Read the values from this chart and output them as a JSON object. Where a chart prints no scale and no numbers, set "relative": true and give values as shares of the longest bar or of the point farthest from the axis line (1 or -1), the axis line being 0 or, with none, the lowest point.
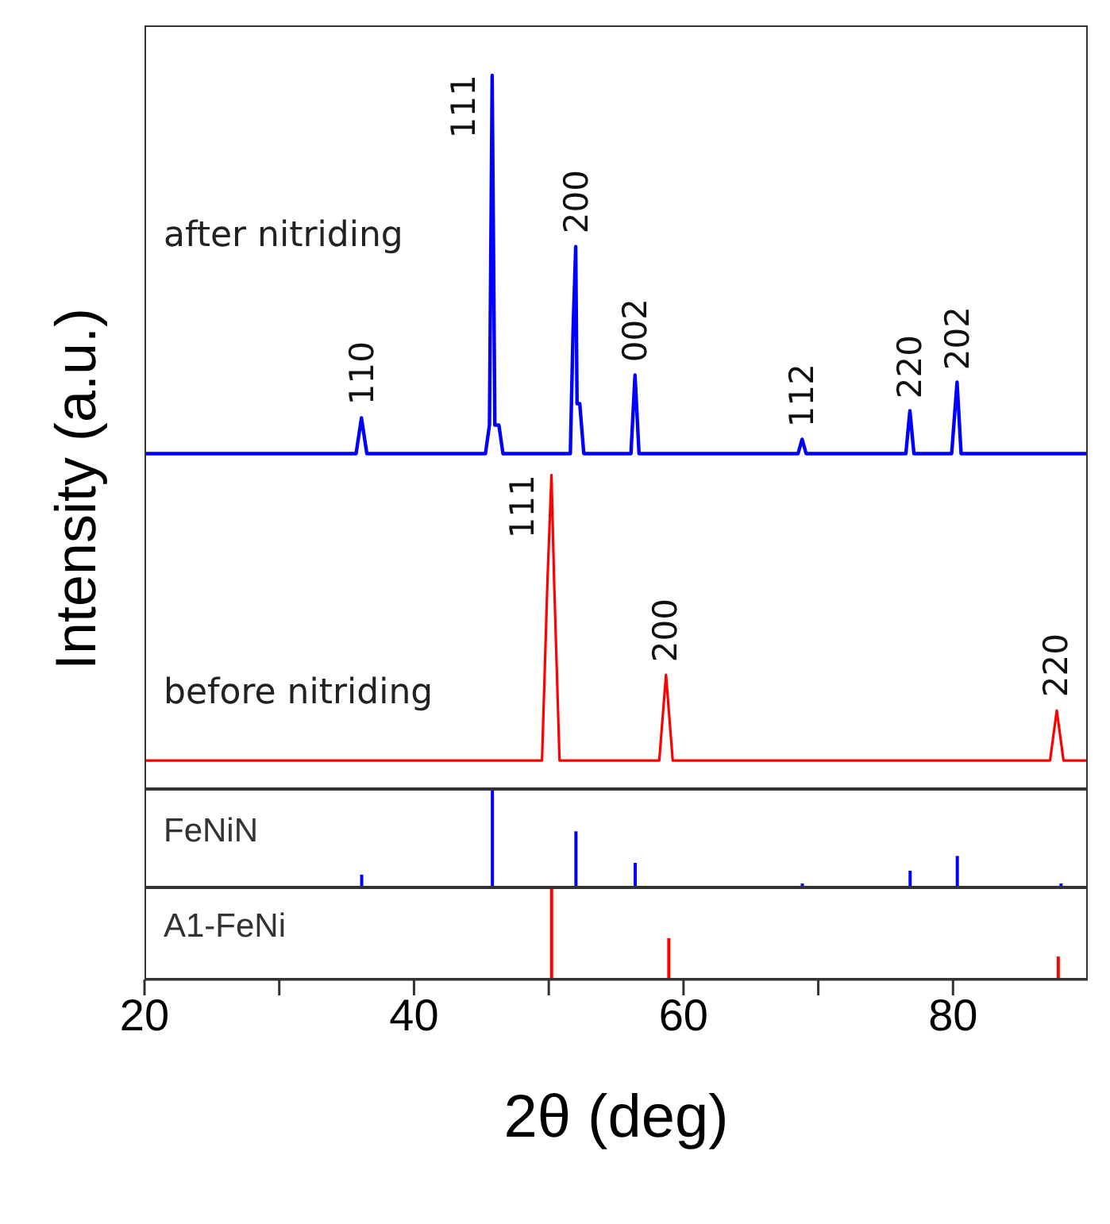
{
  "chart_data": [
    {
      "type": "line",
      "relative": true,
      "ylabel": "Intensity (a.u.)",
      "xlim": [
        20,
        90
      ],
      "tick_labels": false,
      "series": [
        {
          "name": "after nitriding",
          "color": "#0000ff",
          "x": [
            20,
            35.7,
            36.1,
            36.5,
            45.3,
            45.6,
            45.8,
            46.0,
            46.3,
            46.6,
            51.6,
            51.8,
            52.0,
            52.1,
            52.3,
            52.6,
            56.1,
            56.4,
            56.7,
            68.5,
            68.8,
            69.1,
            76.5,
            76.8,
            77.1,
            79.9,
            80.1,
            80.3,
            80.6,
            90
          ],
          "values": [
            0.47,
            0.47,
            0.52,
            0.47,
            0.47,
            0.51,
            1.0,
            0.51,
            0.51,
            0.47,
            0.47,
            0.64,
            0.76,
            0.54,
            0.54,
            0.47,
            0.47,
            0.58,
            0.47,
            0.47,
            0.49,
            0.47,
            0.47,
            0.53,
            0.47,
            0.47,
            0.52,
            0.57,
            0.47,
            0.47
          ]
        },
        {
          "name": "before nitriding",
          "color": "#ff0000",
          "x": [
            20,
            49.5,
            49.9,
            50.2,
            50.4,
            50.8,
            58.2,
            58.7,
            59.2,
            87.2,
            87.7,
            88.2,
            90
          ],
          "values": [
            0.04,
            0.04,
            0.29,
            0.44,
            0.29,
            0.04,
            0.04,
            0.16,
            0.04,
            0.04,
            0.11,
            0.04,
            0.04
          ]
        }
      ],
      "annotations": [
        {
          "text": "110",
          "x": 36.1,
          "y": 0.52
        },
        {
          "text": "111",
          "x": 45.8,
          "y": 1.0
        },
        {
          "text": "200",
          "x": 52.0,
          "y": 0.76
        },
        {
          "text": "002",
          "x": 56.4,
          "y": 0.58
        },
        {
          "text": "112",
          "x": 68.8,
          "y": 0.49
        },
        {
          "text": "220",
          "x": 76.8,
          "y": 0.53
        },
        {
          "text": "202",
          "x": 80.3,
          "y": 0.57
        },
        {
          "text": "111",
          "x": 50.2,
          "y": 0.44
        },
        {
          "text": "200",
          "x": 58.7,
          "y": 0.16
        },
        {
          "text": "220",
          "x": 87.7,
          "y": 0.11
        }
      ]
    },
    {
      "type": "bar",
      "relative": true,
      "xlim": [
        20,
        90
      ],
      "tick_labels": false,
      "x": [
        36.1,
        45.8,
        52.0,
        56.4,
        68.8,
        76.8,
        80.3,
        88.0
      ],
      "series": [
        {
          "name": "FeNiN",
          "color": "#0000ff",
          "values": [
            0.13,
            1.0,
            0.57,
            0.25,
            0.04,
            0.17,
            0.32,
            0.04
          ]
        }
      ]
    },
    {
      "type": "bar",
      "relative": true,
      "xlim": [
        20,
        90
      ],
      "tick_labels": "x",
      "xlabel": "2θ (deg)",
      "xticks": [
        20,
        {
          "value": 30,
          "label": null
        },
        40,
        {
          "value": 50,
          "label": null
        },
        60,
        {
          "value": 70,
          "label": null
        },
        80
      ],
      "x": [
        50.2,
        58.9,
        87.8
      ],
      "series": [
        {
          "name": "A1-FeNi",
          "color": "#ff0000",
          "values": [
            1.0,
            0.45,
            0.25
          ]
        }
      ]
    }
  ]
}
